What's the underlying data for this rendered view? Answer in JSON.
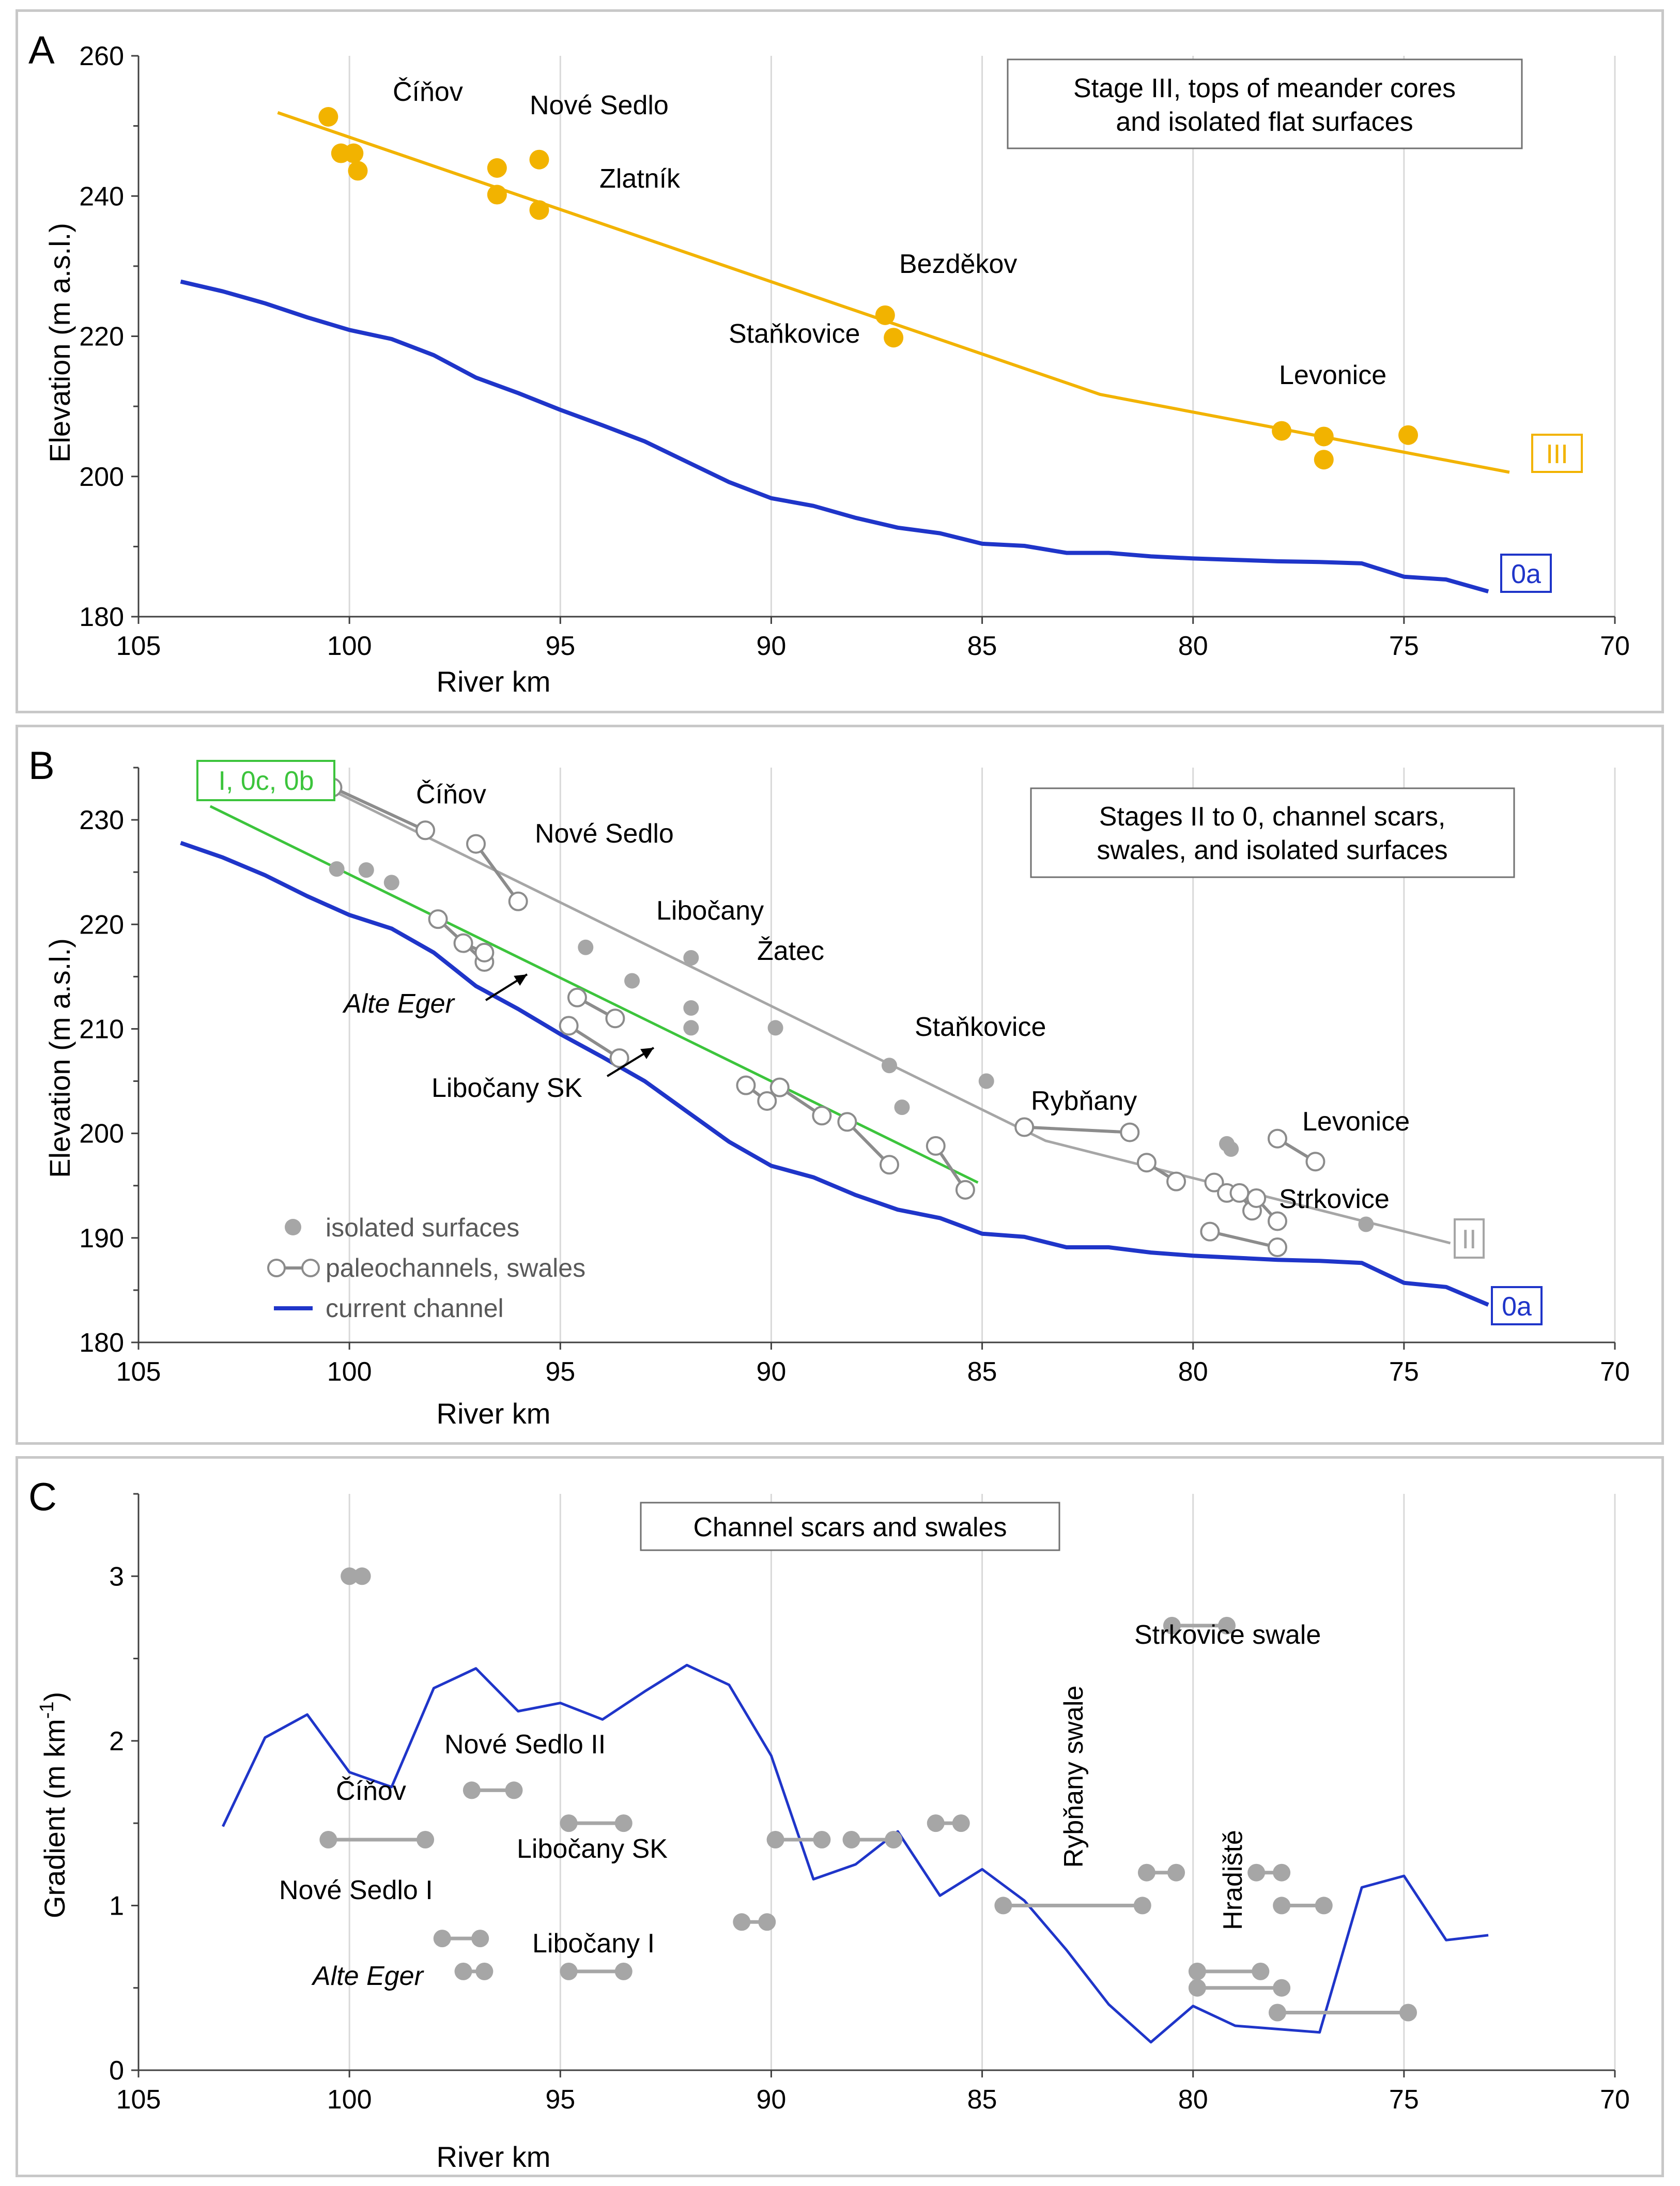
{
  "chart_data": [
    {
      "panel": "A",
      "type": "line",
      "title": "Stage III, tops of meander cores and isolated flat surfaces",
      "xlabel": "River km",
      "ylabel": "Elevation (m a.s.l.)",
      "xlim": [
        105,
        70
      ],
      "ylim": [
        180,
        260
      ],
      "xticks": [
        105,
        100,
        95,
        90,
        85,
        80,
        75,
        70
      ],
      "yticks": [
        180,
        200,
        220,
        240,
        260
      ],
      "grid": true,
      "series": [
        {
          "name": "0a",
          "role": "current-channel",
          "color": "#1f35c9",
          "x": [
            104,
            103,
            102,
            101,
            100,
            99,
            98,
            97,
            96,
            95,
            94,
            93,
            92,
            91,
            90,
            89,
            88,
            87,
            86,
            85,
            84,
            83,
            82,
            81,
            80,
            79,
            78,
            77,
            76,
            75,
            74,
            73
          ],
          "y": [
            227.8,
            226.4,
            224.7,
            222.7,
            220.9,
            219.6,
            217.3,
            214.1,
            211.9,
            209.5,
            207.3,
            205,
            202.1,
            199.2,
            196.9,
            195.8,
            194.1,
            192.7,
            191.9,
            190.4,
            190.1,
            189.1,
            189.1,
            188.6,
            188.3,
            188.1,
            187.9,
            187.8,
            187.6,
            185.7,
            185.3,
            183.6
          ]
        },
        {
          "name": "III",
          "role": "stage-line",
          "color": "#f2b300",
          "x": [
            101.7,
            82.2,
            72.5
          ],
          "y": [
            251.9,
            211.7,
            200.6
          ]
        }
      ],
      "points": {
        "name": "stage III surfaces",
        "color": "#f2b300",
        "x": [
          100.5,
          100.2,
          99.9,
          99.8,
          96.5,
          96.5,
          95.5,
          95.5,
          87.3,
          87.1,
          77.9,
          76.9,
          76.9,
          74.9
        ],
        "y": [
          251.3,
          246.1,
          246.1,
          243.6,
          244,
          240.2,
          245.2,
          238,
          223,
          219.8,
          206.5,
          205.7,
          202.4,
          205.9
        ]
      },
      "annotations": [
        "Číňov",
        "Nové Sedlo",
        "Zlatník",
        "Bezděkov",
        "Staňkovice",
        "Levonice"
      ],
      "line_labels": [
        "III",
        "0a"
      ]
    },
    {
      "panel": "B",
      "type": "line",
      "title": "Stages II to 0, channel scars, swales, and isolated surfaces",
      "xlabel": "River km",
      "ylabel": "Elevation (m a.s.l.)",
      "xlim": [
        105,
        70
      ],
      "ylim": [
        180,
        235
      ],
      "xticks": [
        105,
        100,
        95,
        90,
        85,
        80,
        75,
        70
      ],
      "yticks": [
        180,
        190,
        200,
        210,
        220,
        230
      ],
      "grid": true,
      "legend": [
        "isolated surfaces",
        "paleochannels, swales",
        "current channel"
      ],
      "legend_position": "bottom-left",
      "series": [
        {
          "name": "0a",
          "role": "current-channel",
          "color": "#1f35c9",
          "x": [
            104,
            103,
            102,
            101,
            100,
            99,
            98,
            97,
            96,
            95,
            94,
            93,
            92,
            91,
            90,
            89,
            88,
            87,
            86,
            85,
            84,
            83,
            82,
            81,
            80,
            79,
            78,
            77,
            76,
            75,
            74,
            73
          ],
          "y": [
            227.8,
            226.4,
            224.7,
            222.7,
            220.9,
            219.6,
            217.3,
            214.1,
            211.9,
            209.5,
            207.3,
            205,
            202.1,
            199.2,
            196.9,
            195.8,
            194.1,
            192.7,
            191.9,
            190.4,
            190.1,
            189.1,
            189.1,
            188.6,
            188.3,
            188.1,
            187.9,
            187.8,
            187.6,
            185.7,
            185.3,
            183.6
          ]
        },
        {
          "name": "I, 0c, 0b",
          "role": "stage-line",
          "color": "#3cc43c",
          "x": [
            103.3,
            85.1
          ],
          "y": [
            231.3,
            195.3
          ]
        },
        {
          "name": "II",
          "role": "stage-line",
          "color": "#a6a6a6",
          "x": [
            100.5,
            83.5,
            73.9
          ],
          "y": [
            233,
            199.3,
            189.5
          ]
        }
      ],
      "isolated_surfaces": {
        "x": [
          100.3,
          99.6,
          99,
          94.4,
          93.3,
          91.9,
          91.9,
          91.9,
          89.9,
          87.2,
          86.9,
          84.9,
          79.2,
          79.1,
          75.9
        ],
        "y": [
          225.3,
          225.2,
          224,
          217.8,
          214.6,
          216.8,
          212,
          210.1,
          210.1,
          206.5,
          202.5,
          205,
          199,
          198.5,
          191.3
        ]
      },
      "paleochannels": [
        {
          "x": [
            100.4,
            98.2
          ],
          "y": [
            233.1,
            229
          ]
        },
        {
          "x": [
            97,
            96
          ],
          "y": [
            227.7,
            222.2
          ]
        },
        {
          "x": [
            97.9,
            96.8
          ],
          "y": [
            220.5,
            216.4
          ]
        },
        {
          "x": [
            97.3,
            96.8
          ],
          "y": [
            218.2,
            217.3
          ]
        },
        {
          "x": [
            94.6,
            93.7
          ],
          "y": [
            213,
            211
          ]
        },
        {
          "x": [
            94.8,
            93.6
          ],
          "y": [
            210.3,
            207.2
          ]
        },
        {
          "x": [
            90.6,
            90.1
          ],
          "y": [
            204.6,
            203.1
          ]
        },
        {
          "x": [
            89.8,
            88.8
          ],
          "y": [
            204.4,
            201.7
          ]
        },
        {
          "x": [
            88.2,
            87.2
          ],
          "y": [
            201.1,
            197
          ]
        },
        {
          "x": [
            86.1,
            85.4
          ],
          "y": [
            198.8,
            194.6
          ]
        },
        {
          "x": [
            84,
            81.5
          ],
          "y": [
            200.6,
            200.1
          ]
        },
        {
          "x": [
            81.1,
            80.4
          ],
          "y": [
            197.2,
            195.4
          ]
        },
        {
          "x": [
            79.5,
            79.2
          ],
          "y": [
            195.3,
            194.3
          ]
        },
        {
          "x": [
            78.9,
            78.6
          ],
          "y": [
            194.3,
            192.6
          ]
        },
        {
          "x": [
            78.5,
            78
          ],
          "y": [
            193.8,
            191.6
          ]
        },
        {
          "x": [
            78,
            77.1
          ],
          "y": [
            199.5,
            197.3
          ]
        },
        {
          "x": [
            79.6,
            78
          ],
          "y": [
            190.6,
            189.1
          ]
        }
      ],
      "annotations": [
        "Číňov",
        "Nové Sedlo",
        "Libočany",
        "Žatec",
        "Alte Eger",
        "Staňkovice",
        "Libočany SK",
        "Rybňany",
        "Levonice",
        "Strkovice"
      ],
      "line_labels": [
        "I, 0c, 0b",
        "II",
        "0a"
      ]
    },
    {
      "panel": "C",
      "type": "line",
      "title": "Channel scars and swales",
      "xlabel": "River km",
      "ylabel": "Gradient (m km⁻¹)",
      "xlim": [
        105,
        70
      ],
      "ylim": [
        0,
        3.5
      ],
      "xticks": [
        105,
        100,
        95,
        90,
        85,
        80,
        75,
        70
      ],
      "yticks": [
        0,
        1,
        2,
        3
      ],
      "grid": true,
      "series": [
        {
          "name": "current channel gradient",
          "color": "#1f35c9",
          "x": [
            103,
            102,
            101,
            100,
            99,
            98,
            97,
            96,
            95,
            94,
            93,
            92,
            91,
            90,
            89,
            88,
            87,
            86,
            85,
            84,
            83,
            82,
            81,
            80,
            79,
            78,
            77,
            76,
            75,
            74,
            73
          ],
          "y": [
            1.48,
            2.02,
            2.16,
            1.81,
            1.72,
            2.32,
            2.44,
            2.18,
            2.23,
            2.13,
            2.3,
            2.46,
            2.34,
            1.91,
            1.16,
            1.25,
            1.45,
            1.06,
            1.22,
            1.03,
            0.73,
            0.4,
            0.17,
            0.39,
            0.27,
            0.25,
            0.23,
            1.11,
            1.18,
            0.79,
            0.82
          ]
        }
      ],
      "segments": [
        {
          "x": [
            100,
            99.7
          ],
          "y": [
            3,
            3
          ]
        },
        {
          "x": [
            80.5,
            79.2
          ],
          "y": [
            2.7,
            2.7
          ]
        },
        {
          "x": [
            97.1,
            96.1
          ],
          "y": [
            1.7,
            1.7
          ]
        },
        {
          "x": [
            100.5,
            98.2
          ],
          "y": [
            1.4,
            1.4
          ]
        },
        {
          "x": [
            94.8,
            93.5
          ],
          "y": [
            1.5,
            1.5
          ]
        },
        {
          "x": [
            89.9,
            88.8
          ],
          "y": [
            1.4,
            1.4
          ]
        },
        {
          "x": [
            88.1,
            87.1
          ],
          "y": [
            1.4,
            1.4
          ]
        },
        {
          "x": [
            86.1,
            85.5
          ],
          "y": [
            1.5,
            1.5
          ]
        },
        {
          "x": [
            84.5,
            81.2
          ],
          "y": [
            1,
            1
          ]
        },
        {
          "x": [
            81.1,
            80.4
          ],
          "y": [
            1.2,
            1.2
          ]
        },
        {
          "x": [
            78.5,
            77.9
          ],
          "y": [
            1.2,
            1.2
          ]
        },
        {
          "x": [
            77.9,
            76.9
          ],
          "y": [
            1,
            1
          ]
        },
        {
          "x": [
            90.7,
            90.1
          ],
          "y": [
            0.9,
            0.9
          ]
        },
        {
          "x": [
            97.8,
            96.9
          ],
          "y": [
            0.8,
            0.8
          ]
        },
        {
          "x": [
            97.3,
            96.8
          ],
          "y": [
            0.6,
            0.6
          ]
        },
        {
          "x": [
            94.8,
            93.5
          ],
          "y": [
            0.6,
            0.6
          ]
        },
        {
          "x": [
            79.9,
            78.4
          ],
          "y": [
            0.6,
            0.6
          ]
        },
        {
          "x": [
            79.9,
            77.9
          ],
          "y": [
            0.5,
            0.5
          ]
        },
        {
          "x": [
            78,
            74.9
          ],
          "y": [
            0.35,
            0.35
          ]
        }
      ],
      "annotations": [
        "Strkovice swale",
        "Nové Sedlo II",
        "Číňov",
        "Libočany SK",
        "Rybňany swale",
        "Nové Sedlo I",
        "Hradiště",
        "Libočany I",
        "Alte Eger"
      ]
    }
  ],
  "panels": {
    "A": {
      "letter": "A",
      "labels": {
        "cinov": "Číňov",
        "nove_sedlo": "Nové Sedlo",
        "zlatnik": "Zlatník",
        "bezdekov": "Bezděkov",
        "stankovice": "Staňkovice",
        "levonice": "Levonice"
      },
      "title_line1": "Stage III, tops of meander cores",
      "title_line2": "and isolated flat surfaces",
      "line_III": "III",
      "line_0a": "0a"
    },
    "B": {
      "letter": "B",
      "labels": {
        "cinov": "Číňov",
        "nove_sedlo": "Nové Sedlo",
        "libocany": "Libočany",
        "zatec": "Žatec",
        "alte_eger": "Alte Eger",
        "stankovice": "Staňkovice",
        "libocany_sk": "Libočany SK",
        "rybnany": "Rybňany",
        "levonice": "Levonice",
        "strkovice": "Strkovice"
      },
      "title_line1": "Stages II to 0, channel scars,",
      "title_line2": "swales, and isolated surfaces",
      "legend": {
        "isolated": "isolated surfaces",
        "paleo": "paleochannels, swales",
        "current": "current channel"
      },
      "line_I": "I, 0c, 0b",
      "line_II": "II",
      "line_0a": "0a"
    },
    "C": {
      "letter": "C",
      "labels": {
        "strkovice_swale": "Strkovice swale",
        "nove_sedlo_ii": "Nové Sedlo II",
        "cinov": "Číňov",
        "libocany_sk": "Libočany SK",
        "rybnany_swale": "Rybňany swale",
        "nove_sedlo_i": "Nové Sedlo I",
        "hradiste": "Hradiště",
        "libocany_i": "Libočany I",
        "alte_eger": "Alte Eger"
      },
      "title": "Channel scars and swales",
      "ylabel_main": "Gradient (m km",
      "ylabel_sup": "-1",
      "ylabel_end": ")"
    }
  },
  "colors": {
    "channel": "#1f35c9",
    "stage_III": "#f2b300",
    "stage_I": "#3cc43c",
    "stage_II": "#a6a6a6",
    "marker": "#a6a6a6",
    "grid": "#d9d9d9",
    "axis": "#404040"
  }
}
